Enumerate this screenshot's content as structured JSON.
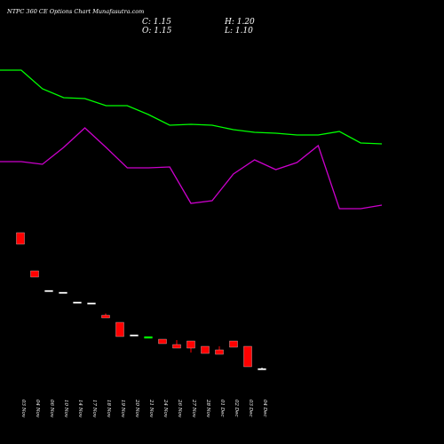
{
  "chart_data": [
    {
      "type": "candlestick",
      "title": "NTPC 360 CE Options Chart Munafasutra.com",
      "close_label": "C: 1.15",
      "high_label": "H: 1.20",
      "open_label": "O: 1.15",
      "low_label": "L: 1.10",
      "categories": [
        "03 Nov",
        "04 Nov",
        "06 Nov",
        "10 Nov",
        "14 Nov",
        "17 Nov",
        "18 Nov",
        "19 Nov",
        "20 Nov",
        "21 Nov",
        "24 Nov",
        "26 Nov",
        "27 Nov",
        "28 Nov",
        "01 Dec",
        "02 Dec",
        "03 Dec",
        "04 Dec"
      ],
      "open": [
        8.8,
        6.65,
        5.55,
        5.45,
        4.9,
        4.85,
        4.15,
        3.75,
        3.05,
        2.85,
        2.8,
        2.5,
        2.7,
        2.4,
        2.2,
        2.7,
        2.4,
        1.15
      ],
      "high": [
        8.8,
        6.65,
        5.55,
        5.45,
        4.9,
        4.85,
        4.25,
        3.75,
        3.05,
        2.95,
        2.8,
        2.75,
        2.7,
        2.4,
        2.4,
        2.7,
        2.4,
        1.2
      ],
      "low": [
        8.15,
        6.3,
        5.55,
        5.45,
        4.9,
        4.85,
        4.0,
        2.95,
        3.05,
        2.85,
        2.55,
        2.3,
        2.05,
        2.0,
        1.95,
        2.35,
        1.25,
        1.1
      ],
      "close": [
        8.15,
        6.3,
        5.55,
        5.45,
        4.9,
        4.85,
        4.0,
        2.95,
        3.05,
        2.95,
        2.55,
        2.3,
        2.3,
        2.0,
        1.95,
        2.35,
        1.25,
        1.15
      ],
      "ylim": [
        0.9,
        8.9
      ],
      "up_color": "#00ff00",
      "down_color": "#ff0000",
      "flat_color": "#ffffff"
    },
    {
      "type": "line",
      "x": [
        0,
        1,
        2,
        3,
        4,
        5,
        6,
        7,
        8,
        9,
        10,
        11,
        12,
        13,
        14,
        15,
        16,
        17,
        18
      ],
      "xlim": [
        0,
        18
      ],
      "ylim": [
        0,
        100
      ],
      "series": [
        {
          "color": "#00ff00",
          "values": [
            85.5,
            85.5,
            75,
            70,
            69.5,
            65.5,
            65.5,
            60.5,
            54.5,
            55,
            54.5,
            52,
            50.5,
            50,
            49,
            49,
            51,
            44.5,
            44
          ]
        },
        {
          "color": "#cc00cc",
          "values": [
            34,
            34,
            32.5,
            42,
            53,
            42,
            30.5,
            30.5,
            31,
            10.5,
            12,
            27,
            35,
            29.5,
            33.5,
            43,
            7.5,
            7.5,
            9.5
          ]
        }
      ]
    }
  ]
}
